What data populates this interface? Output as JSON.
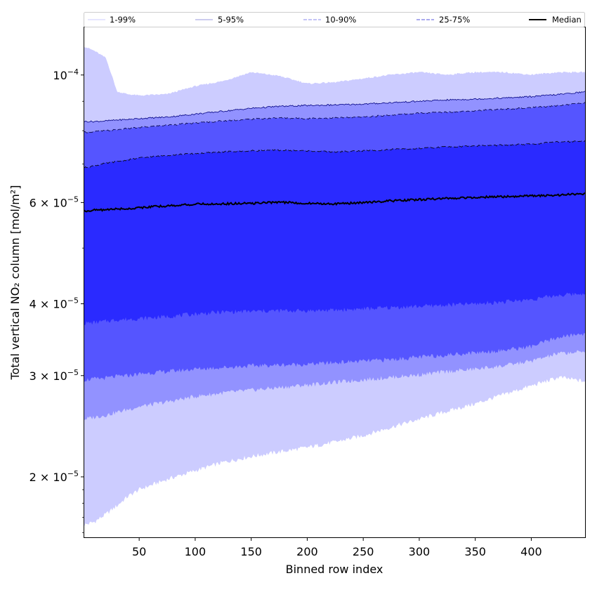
{
  "chart_data": {
    "type": "area",
    "xlabel": "Binned row index",
    "ylabel": "Total vertical NO₂ column [mol/m²]",
    "xlim": [
      1,
      448
    ],
    "ylim": [
      1.57e-05,
      0.000121
    ],
    "yscale": "log",
    "grid": false,
    "legend_position": "top",
    "x_ticks": [
      50,
      100,
      150,
      200,
      250,
      300,
      350,
      400
    ],
    "y_ticks": [
      {
        "value": 0.0001,
        "mantissa": "",
        "exponent": "−4"
      },
      {
        "value": 6e-05,
        "mantissa": "6 × ",
        "exponent": "−5"
      },
      {
        "value": 4e-05,
        "mantissa": "4 × ",
        "exponent": "−5"
      },
      {
        "value": 3e-05,
        "mantissa": "3 × ",
        "exponent": "−5"
      },
      {
        "value": 2e-05,
        "mantissa": "2 × ",
        "exponent": "−5"
      }
    ],
    "y_minor_ticks": [
      1.6e-05,
      1.7e-05,
      1.8e-05,
      1.9e-05,
      5e-05,
      7e-05,
      8e-05,
      9e-05
    ],
    "x": [
      1,
      10,
      20,
      30,
      40,
      50,
      75,
      100,
      125,
      150,
      175,
      200,
      225,
      250,
      275,
      300,
      325,
      350,
      375,
      400,
      425,
      448
    ],
    "bands": [
      {
        "name": "1-99%",
        "color": "#ccccff",
        "edge_color": "#ccccff",
        "lower": [
          1.65e-05,
          1.67e-05,
          1.72e-05,
          1.78e-05,
          1.85e-05,
          1.9e-05,
          1.98e-05,
          2.05e-05,
          2.12e-05,
          2.17e-05,
          2.21e-05,
          2.25e-05,
          2.3e-05,
          2.36e-05,
          2.44e-05,
          2.52e-05,
          2.6e-05,
          2.68e-05,
          2.78e-05,
          2.88e-05,
          2.98e-05,
          2.93e-05
        ],
        "upper": [
          0.000112,
          0.00011,
          0.000107,
          9.35e-05,
          9.25e-05,
          9.2e-05,
          9.25e-05,
          9.55e-05,
          9.75e-05,
          0.000101,
          9.95e-05,
          9.65e-05,
          9.7e-05,
          9.85e-05,
          0.0001,
          0.000101,
          0.0001,
          0.000101,
          0.000101,
          0.0001,
          0.000101,
          0.000101
        ]
      },
      {
        "name": "5-95%",
        "color": "#9292ff",
        "edge_color": "#000080",
        "lower": [
          2.52e-05,
          2.54e-05,
          2.56e-05,
          2.59e-05,
          2.62e-05,
          2.65e-05,
          2.7e-05,
          2.76e-05,
          2.8e-05,
          2.83e-05,
          2.86e-05,
          2.89e-05,
          2.92e-05,
          2.95e-05,
          2.98e-05,
          3.01e-05,
          3.05e-05,
          3.08e-05,
          3.12e-05,
          3.18e-05,
          3.28e-05,
          3.3e-05
        ],
        "upper": [
          8.3e-05,
          8.3e-05,
          8.32e-05,
          8.35e-05,
          8.37e-05,
          8.4e-05,
          8.45e-05,
          8.55e-05,
          8.65e-05,
          8.75e-05,
          8.82e-05,
          8.85e-05,
          8.87e-05,
          8.9e-05,
          8.95e-05,
          9e-05,
          9.05e-05,
          9.08e-05,
          9.12e-05,
          9.17e-05,
          9.25e-05,
          9.35e-05
        ]
      },
      {
        "name": "10-90%",
        "color": "#5555ff",
        "edge_color": "#000040",
        "lower": [
          2.95e-05,
          2.96e-05,
          2.97e-05,
          2.99e-05,
          3e-05,
          3.02e-05,
          3.05e-05,
          3.08e-05,
          3.1e-05,
          3.12e-05,
          3.13e-05,
          3.14e-05,
          3.16e-05,
          3.18e-05,
          3.2e-05,
          3.23e-05,
          3.26e-05,
          3.29e-05,
          3.32e-05,
          3.37e-05,
          3.5e-05,
          3.55e-05
        ],
        "upper": [
          7.95e-05,
          7.97e-05,
          8e-05,
          8.03e-05,
          8.07e-05,
          8.1e-05,
          8.18e-05,
          8.25e-05,
          8.32e-05,
          8.38e-05,
          8.42e-05,
          8.4e-05,
          8.42e-05,
          8.45e-05,
          8.52e-05,
          8.58e-05,
          8.62e-05,
          8.67e-05,
          8.72e-05,
          8.77e-05,
          8.85e-05,
          8.95e-05
        ]
      },
      {
        "name": "25-75%",
        "color": "#2a2aff",
        "edge_color": "#000000",
        "lower": [
          3.7e-05,
          3.71e-05,
          3.73e-05,
          3.75e-05,
          3.76e-05,
          3.77e-05,
          3.8e-05,
          3.84e-05,
          3.87e-05,
          3.88e-05,
          3.89e-05,
          3.89e-05,
          3.9e-05,
          3.92e-05,
          3.94e-05,
          3.96e-05,
          3.98e-05,
          4e-05,
          4.03e-05,
          4.07e-05,
          4.14e-05,
          4.17e-05
        ],
        "upper": [
          6.9e-05,
          6.95e-05,
          7.02e-05,
          7.07e-05,
          7.12e-05,
          7.17e-05,
          7.25e-05,
          7.3e-05,
          7.35e-05,
          7.38e-05,
          7.4e-05,
          7.38e-05,
          7.35e-05,
          7.38e-05,
          7.42e-05,
          7.45e-05,
          7.5e-05,
          7.53e-05,
          7.55e-05,
          7.58e-05,
          7.65e-05,
          7.68e-05
        ]
      }
    ],
    "median": {
      "name": "Median",
      "color": "#000000",
      "values": [
        5.8e-05,
        5.82e-05,
        5.83e-05,
        5.85e-05,
        5.85e-05,
        5.88e-05,
        5.92e-05,
        5.96e-05,
        5.97e-05,
        5.98e-05,
        6.01e-05,
        5.98e-05,
        5.97e-05,
        6e-05,
        6.04e-05,
        6.07e-05,
        6.1e-05,
        6.13e-05,
        6.14e-05,
        6.16e-05,
        6.18e-05,
        6.22e-05
      ]
    }
  }
}
